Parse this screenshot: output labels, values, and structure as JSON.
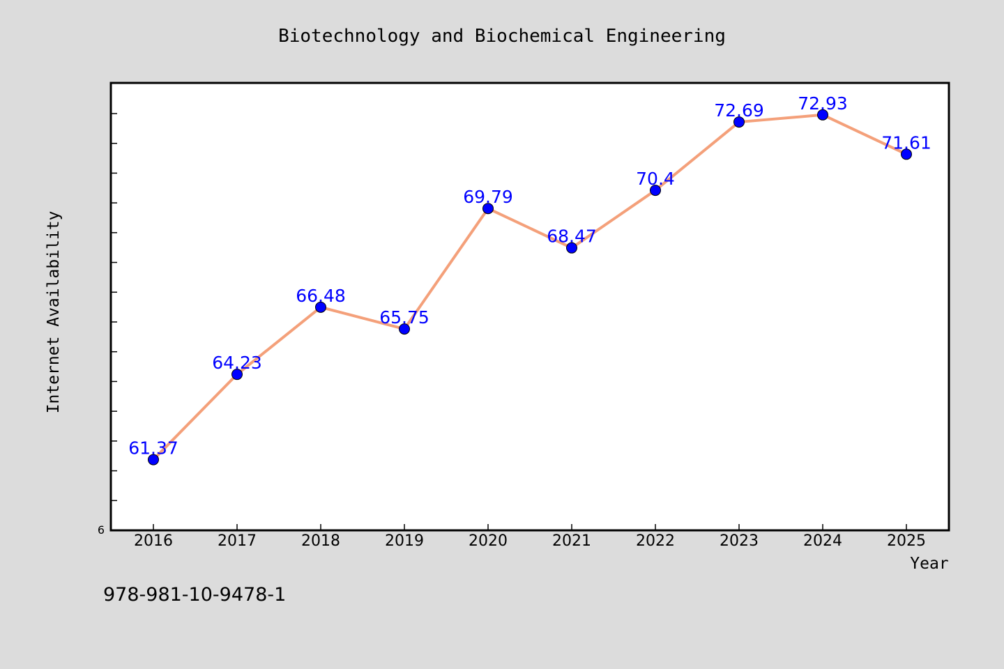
{
  "figure": {
    "background": "#dcdcdc",
    "plot_background": "#ffffff",
    "isbn": "978-981-10-9478-1"
  },
  "chart_data": {
    "type": "line",
    "title": "Biotechnology and Biochemical Engineering",
    "xlabel": "Year",
    "ylabel": "Internet Availability",
    "x": [
      "2016",
      "2017",
      "2018",
      "2019",
      "2020",
      "2021",
      "2022",
      "2023",
      "2024",
      "2025"
    ],
    "series": [
      {
        "values": [
          61.37,
          64.23,
          66.48,
          65.75,
          69.79,
          68.47,
          70.4,
          72.69,
          72.93,
          71.61
        ],
        "line_color": "#f4a07a",
        "marker_color": "#0000ff",
        "label_color": "#0000ff"
      }
    ],
    "ylim": [
      59.0,
      74.0
    ],
    "y_min_tick_label": "6",
    "grid": false,
    "legend": "none"
  }
}
